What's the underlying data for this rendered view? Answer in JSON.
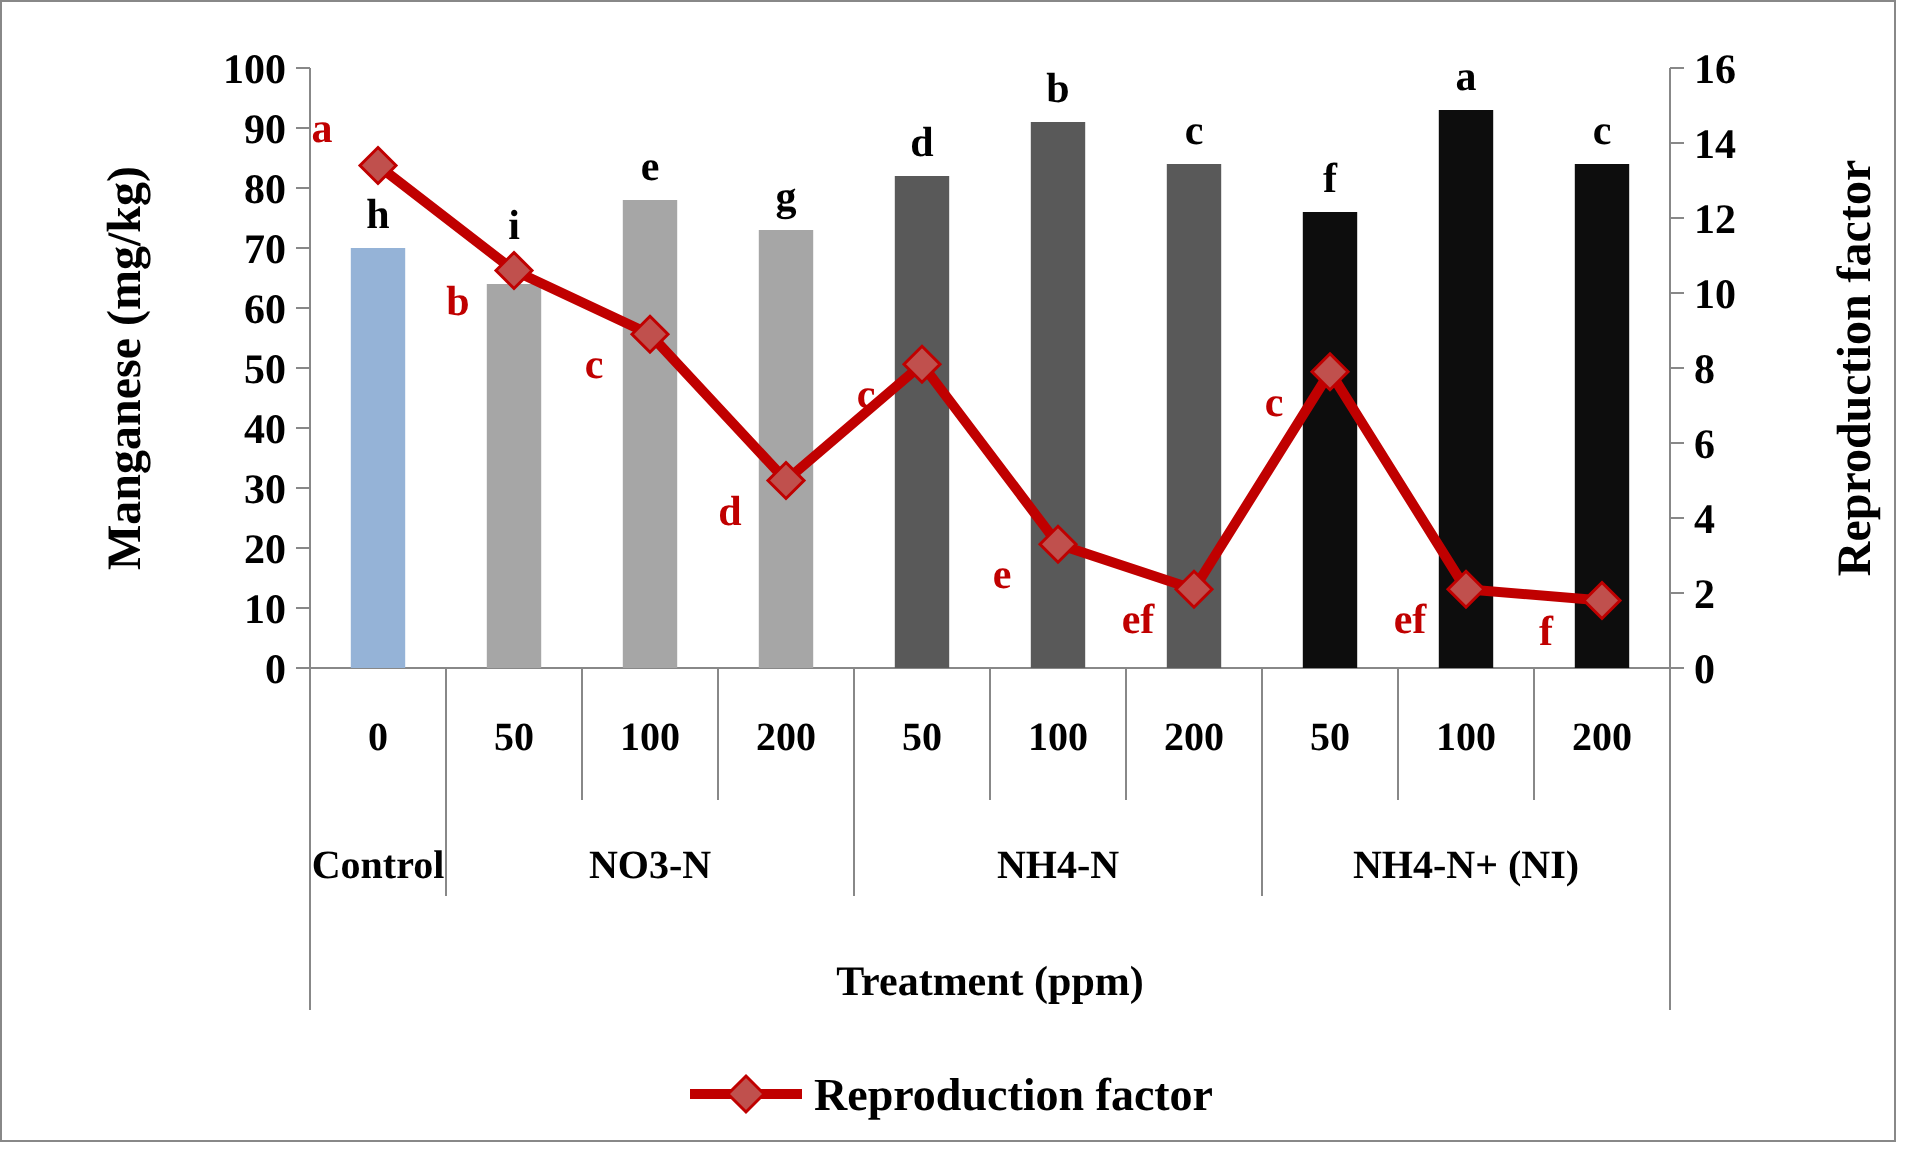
{
  "chart_data": {
    "type": "bar",
    "categories": [
      "0",
      "50",
      "100",
      "200",
      "50",
      "100",
      "200",
      "50",
      "100",
      "200"
    ],
    "xlabel": "Treatment (ppm)",
    "ylabel": "Manganese (mg/kg)",
    "y2label": "Reproduction factor",
    "ylim": [
      0,
      100
    ],
    "yticks": [
      0,
      10,
      20,
      30,
      40,
      50,
      60,
      70,
      80,
      90,
      100
    ],
    "y2lim": [
      0,
      16
    ],
    "y2ticks": [
      0,
      2,
      4,
      6,
      8,
      10,
      12,
      14,
      16
    ],
    "series": [
      {
        "colors": [
          "#95b3d7",
          "#a6a6a6",
          "#a6a6a6",
          "#a6a6a6",
          "#595959",
          "#595959",
          "#595959",
          "#0d0d0d",
          "#0d0d0d",
          "#0d0d0d"
        ],
        "values": [
          70,
          64,
          78,
          73,
          82,
          91,
          84,
          76,
          93,
          84
        ],
        "value_labels": [
          "h",
          "i",
          "e",
          "g",
          "d",
          "b",
          "c",
          "f",
          "a",
          "c"
        ]
      },
      {
        "type": "line",
        "name": "Reproduction factor",
        "color": "#c00000",
        "axis": "y2",
        "marker": "diamond",
        "values": [
          13.4,
          10.6,
          8.9,
          5.0,
          8.1,
          3.3,
          2.1,
          7.9,
          2.1,
          1.8
        ],
        "value_labels": [
          "a",
          "b",
          "c",
          "d",
          "c",
          "e",
          "ef",
          "c",
          "ef",
          "f"
        ]
      }
    ],
    "annotations": [
      "Control",
      "NO3-N",
      "NH4-N",
      "NH4-N+ (NI)"
    ],
    "grid": false,
    "legend": "bottom"
  }
}
